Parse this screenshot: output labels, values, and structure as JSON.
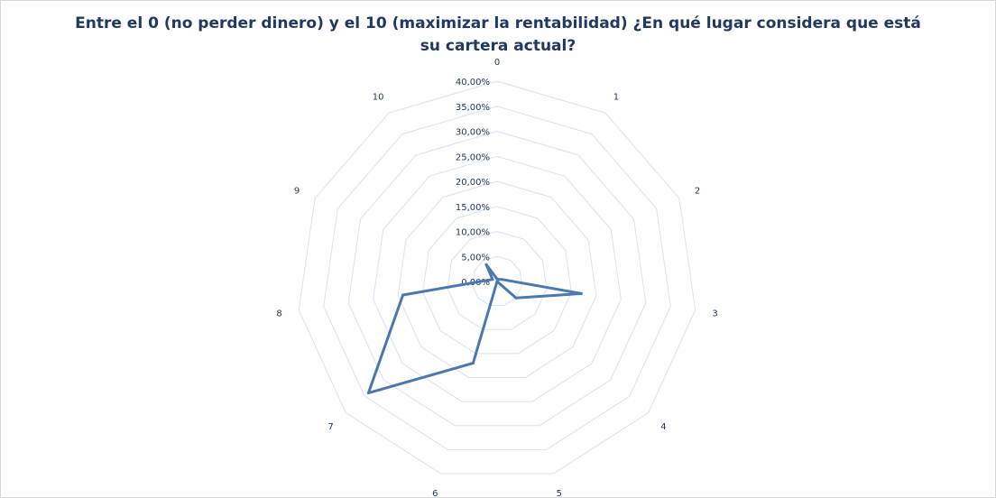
{
  "chart_data": {
    "type": "radar",
    "title_lines": [
      "Entre el 0 (no perder dinero) y el 10 (maximizar la rentabilidad) ¿En qué lugar considera que está",
      "su cartera actual?"
    ],
    "categories": [
      "0",
      "1",
      "2",
      "3",
      "4",
      "5",
      "6",
      "7",
      "8",
      "9",
      "10"
    ],
    "values": [
      0.005,
      0.005,
      0.01,
      0.17,
      0.05,
      0.0,
      0.17,
      0.34,
      0.19,
      0.01,
      0.04
    ],
    "rlim": [
      0,
      0.4
    ],
    "ticks": [
      "0,00%",
      "5,00%",
      "10,00%",
      "15,00%",
      "20,00%",
      "25,00%",
      "30,00%",
      "35,00%",
      "40,00%"
    ],
    "grid": true,
    "legend": "none",
    "colors": {
      "series": "#4a78b4",
      "grid": "#d9e1f0",
      "text": "#1f3864"
    }
  }
}
